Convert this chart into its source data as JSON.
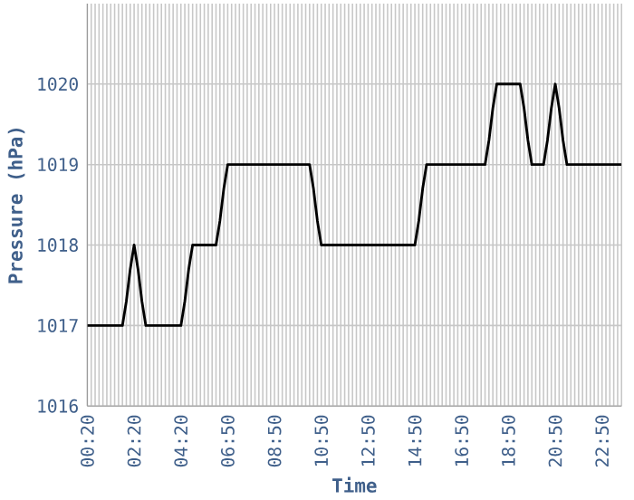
{
  "chart_data": {
    "type": "line",
    "xlabel": "Time",
    "ylabel": "Pressure (hPa)",
    "categories": [
      "00:20",
      null,
      null,
      null,
      null,
      null,
      null,
      null,
      null,
      null,
      null,
      null,
      "02:20",
      null,
      null,
      null,
      null,
      null,
      null,
      null,
      null,
      null,
      null,
      null,
      "04:20",
      null,
      null,
      null,
      null,
      null,
      null,
      null,
      null,
      null,
      null,
      null,
      "06:50",
      null,
      null,
      null,
      null,
      null,
      null,
      null,
      null,
      null,
      null,
      null,
      "08:50",
      null,
      null,
      null,
      null,
      null,
      null,
      null,
      null,
      null,
      null,
      null,
      "10:50",
      null,
      null,
      null,
      null,
      null,
      null,
      null,
      null,
      null,
      null,
      null,
      "12:50",
      null,
      null,
      null,
      null,
      null,
      null,
      null,
      null,
      null,
      null,
      null,
      "14:50",
      null,
      null,
      null,
      null,
      null,
      null,
      null,
      null,
      null,
      null,
      null,
      "16:50",
      null,
      null,
      null,
      null,
      null,
      null,
      null,
      null,
      null,
      null,
      null,
      "18:50",
      null,
      null,
      null,
      null,
      null,
      null,
      null,
      null,
      null,
      null,
      null,
      "20:50",
      null,
      null,
      null,
      null,
      null,
      null,
      null,
      null,
      null,
      null,
      null,
      "22:50",
      null,
      null,
      null,
      null,
      null
    ],
    "series": [
      {
        "color": "#000000",
        "values": [
          1017,
          1017,
          1017,
          1017,
          1017,
          1017,
          1017,
          1017,
          1017,
          1017,
          1017.3,
          1017.7,
          1018,
          1017.7,
          1017.3,
          1017,
          1017,
          1017,
          1017,
          1017,
          1017,
          1017,
          1017,
          1017,
          1017,
          1017.3,
          1017.7,
          1018,
          1018,
          1018,
          1018,
          1018,
          1018,
          1018,
          1018.3,
          1018.7,
          1019,
          1019,
          1019,
          1019,
          1019,
          1019,
          1019,
          1019,
          1019,
          1019,
          1019,
          1019,
          1019,
          1019,
          1019,
          1019,
          1019,
          1019,
          1019,
          1019,
          1019,
          1019,
          1018.7,
          1018.3,
          1018,
          1018,
          1018,
          1018,
          1018,
          1018,
          1018,
          1018,
          1018,
          1018,
          1018,
          1018,
          1018,
          1018,
          1018,
          1018,
          1018,
          1018,
          1018,
          1018,
          1018,
          1018,
          1018,
          1018,
          1018,
          1018.3,
          1018.7,
          1019,
          1019,
          1019,
          1019,
          1019,
          1019,
          1019,
          1019,
          1019,
          1019,
          1019,
          1019,
          1019,
          1019,
          1019,
          1019,
          1019.3,
          1019.7,
          1020,
          1020,
          1020,
          1020,
          1020,
          1020,
          1020,
          1019.7,
          1019.3,
          1019,
          1019,
          1019,
          1019,
          1019.3,
          1019.7,
          1020,
          1019.7,
          1019.3,
          1019,
          1019,
          1019,
          1019,
          1019,
          1019,
          1019,
          1019,
          1019,
          1019,
          1019,
          1019,
          1019,
          1019,
          1019
        ]
      }
    ],
    "ylim": [
      1016,
      1021
    ],
    "yticks": [
      1016,
      1017,
      1018,
      1019,
      1020
    ],
    "grid": true
  }
}
